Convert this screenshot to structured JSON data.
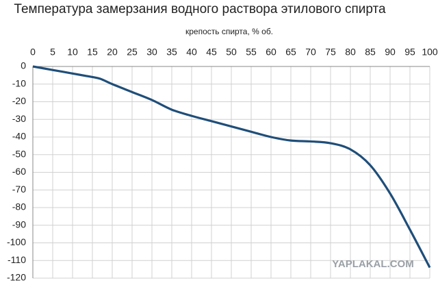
{
  "chart_data": {
    "type": "line",
    "title": "Температура замерзания водного раствора этилового спирта",
    "x_label": "крепость спирта, % об.",
    "x": [
      0,
      5,
      10,
      15,
      17,
      20,
      25,
      30,
      35,
      40,
      45,
      50,
      55,
      60,
      65,
      70,
      75,
      80,
      85,
      90,
      95,
      100
    ],
    "series": [
      {
        "color": "#1f4e79",
        "values": [
          0,
          -2,
          -4,
          -6,
          -7,
          -10,
          -14.5,
          -19,
          -24.5,
          -28,
          -31,
          -34,
          -37,
          -40,
          -42,
          -42.5,
          -43.5,
          -47,
          -56,
          -72,
          -92.5,
          -114
        ]
      }
    ],
    "xlim": [
      0,
      100
    ],
    "xticks": [
      0,
      5,
      10,
      15,
      20,
      25,
      30,
      35,
      40,
      45,
      50,
      55,
      60,
      65,
      70,
      75,
      80,
      85,
      90,
      95,
      100
    ],
    "ylim": [
      -120,
      0
    ],
    "yticks": [
      0,
      -10,
      -20,
      -30,
      -40,
      -50,
      -60,
      -70,
      -80,
      -90,
      -100,
      -110,
      -120
    ],
    "grid": true,
    "watermark": "YAPLAKAL.COM"
  }
}
